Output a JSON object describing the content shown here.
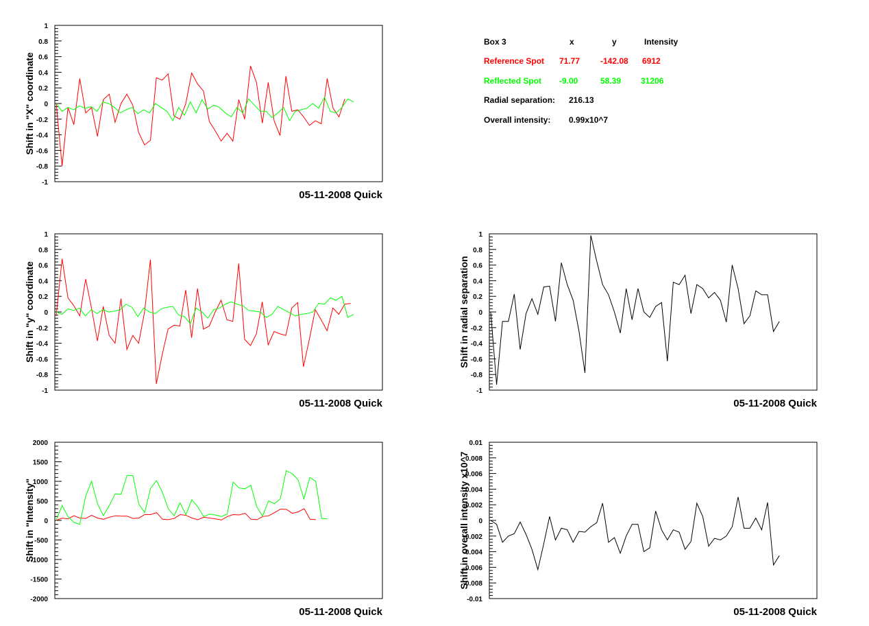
{
  "colors": {
    "reference": "#ff0000",
    "reflected": "#00ff00",
    "single": "#000000",
    "frame": "#000000"
  },
  "info_box": {
    "header": {
      "box": "Box 3",
      "x": "x",
      "y": "y",
      "intensity": "Intensity"
    },
    "reference": {
      "label": "Reference Spot",
      "x": "71.77",
      "y": "-142.08",
      "intensity": "6912"
    },
    "reflected": {
      "label": "Reflected Spot",
      "x": "-9.00",
      "y": "58.39",
      "intensity": "31206"
    },
    "radial": {
      "label": "Radial separation:",
      "value": "216.13"
    },
    "overall": {
      "label": "Overall intensity:",
      "value": "0.99x10^7"
    }
  },
  "chart_data": [
    {
      "id": "x_shift",
      "type": "line",
      "ylabel": "Shift in \"X\" coordinate",
      "footer": "05-11-2008 Quick",
      "ylim": [
        -1,
        1
      ],
      "yticks": [
        "1",
        "0.8",
        "0.6",
        "0.4",
        "0.2",
        "0",
        "-0.2",
        "-0.4",
        "-0.6",
        "-0.8",
        "-1"
      ],
      "ytick_values": [
        1,
        0.8,
        0.6,
        0.4,
        0.2,
        0,
        -0.2,
        -0.4,
        -0.6,
        -0.8,
        -1
      ],
      "series": [
        {
          "color_key": "reference",
          "values": [
            0.0,
            -0.8,
            -0.05,
            -0.27,
            0.32,
            -0.12,
            -0.05,
            -0.42,
            0.05,
            0.12,
            -0.24,
            0.0,
            0.12,
            -0.02,
            -0.37,
            -0.53,
            -0.47,
            0.33,
            0.3,
            0.38,
            -0.16,
            -0.2,
            0.0,
            0.39,
            0.25,
            0.16,
            -0.23,
            -0.35,
            -0.48,
            -0.38,
            -0.48,
            0.05,
            -0.2,
            0.48,
            0.27,
            -0.25,
            0.27,
            -0.22,
            -0.41,
            0.35,
            -0.1,
            -0.08,
            -0.17,
            -0.28,
            -0.22,
            -0.26,
            0.32,
            -0.06,
            -0.17,
            0.06
          ]
        },
        {
          "color_key": "reflected",
          "values": [
            0.0,
            -0.1,
            -0.05,
            -0.08,
            -0.03,
            -0.06,
            -0.04,
            -0.1,
            0.02,
            0.0,
            -0.05,
            -0.12,
            -0.08,
            -0.05,
            -0.13,
            -0.08,
            -0.12,
            0.0,
            -0.05,
            -0.1,
            -0.22,
            -0.05,
            -0.15,
            0.02,
            -0.12,
            0.05,
            -0.07,
            -0.02,
            -0.05,
            -0.12,
            -0.17,
            -0.05,
            -0.12,
            0.06,
            -0.02,
            -0.1,
            -0.1,
            -0.18,
            -0.12,
            -0.05,
            -0.22,
            -0.1,
            -0.08,
            -0.06,
            0.0,
            -0.06,
            0.08,
            -0.1,
            -0.12,
            -0.05,
            0.06,
            0.02
          ]
        }
      ]
    },
    {
      "id": "y_shift",
      "type": "line",
      "ylabel": "Shift in \"y\" coordinate",
      "footer": "05-11-2008 Quick",
      "ylim": [
        -1,
        1
      ],
      "yticks": [
        "1",
        "0.8",
        "0.6",
        "0.4",
        "0.2",
        "0",
        "-0.2",
        "-0.4",
        "-0.6",
        "-0.8",
        "-1"
      ],
      "ytick_values": [
        1,
        0.8,
        0.6,
        0.4,
        0.2,
        0,
        -0.2,
        -0.4,
        -0.6,
        -0.8,
        -1
      ],
      "series": [
        {
          "color_key": "reference",
          "values": [
            -0.05,
            0.68,
            0.18,
            0.08,
            -0.05,
            0.42,
            0.05,
            -0.37,
            0.07,
            -0.3,
            -0.4,
            0.17,
            -0.48,
            -0.3,
            -0.4,
            0.0,
            0.67,
            -0.92,
            -0.55,
            -0.22,
            -0.17,
            -0.18,
            0.28,
            -0.33,
            0.3,
            -0.22,
            -0.18,
            0.0,
            0.15,
            -0.1,
            -0.12,
            0.62,
            -0.35,
            -0.43,
            -0.28,
            0.13,
            -0.42,
            -0.25,
            -0.28,
            -0.3,
            0.05,
            0.12,
            -0.7,
            -0.35,
            0.03,
            -0.1,
            -0.24,
            0.05,
            -0.03,
            0.1,
            0.11
          ]
        },
        {
          "color_key": "reflected",
          "values": [
            0.0,
            -0.03,
            0.04,
            0.02,
            0.05,
            -0.05,
            0.03,
            -0.02,
            0.03,
            0.0,
            0.01,
            0.03,
            0.1,
            0.06,
            -0.06,
            0.05,
            0.0,
            -0.02,
            0.04,
            0.06,
            0.07,
            -0.04,
            -0.06,
            -0.15,
            0.05,
            0.0,
            -0.08,
            0.03,
            0.05,
            0.1,
            0.13,
            0.1,
            0.08,
            0.02,
            0.01,
            0.0,
            -0.07,
            -0.03,
            0.07,
            0.03,
            -0.01,
            -0.05,
            -0.03,
            -0.02,
            0.0,
            0.11,
            0.1,
            0.18,
            0.15,
            0.2,
            -0.07,
            -0.03
          ]
        }
      ]
    },
    {
      "id": "intensity_shift",
      "type": "line",
      "ylabel": "Shift in \"Intensity\"",
      "footer": "05-11-2008 Quick",
      "ylim": [
        -2000,
        2000
      ],
      "yticks": [
        "2000",
        "1500",
        "1000",
        "500",
        "0",
        "-500",
        "-1000",
        "-1500",
        "-2000"
      ],
      "ytick_values": [
        2000,
        1500,
        1000,
        500,
        0,
        -500,
        -1000,
        -1500,
        -2000
      ],
      "series": [
        {
          "color_key": "reference",
          "values": [
            0,
            60,
            40,
            120,
            60,
            50,
            130,
            60,
            30,
            80,
            120,
            110,
            110,
            50,
            60,
            150,
            150,
            200,
            30,
            20,
            50,
            150,
            130,
            60,
            20,
            80,
            60,
            40,
            10,
            100,
            150,
            140,
            180,
            30,
            20,
            100,
            120,
            200,
            290,
            280,
            180,
            220,
            300,
            30,
            20
          ]
        },
        {
          "color_key": "reflected",
          "values": [
            0,
            380,
            100,
            -50,
            -100,
            620,
            1000,
            430,
            120,
            380,
            680,
            670,
            1150,
            1150,
            420,
            200,
            820,
            1020,
            720,
            300,
            120,
            450,
            150,
            530,
            350,
            100,
            160,
            140,
            100,
            160,
            980,
            830,
            810,
            900,
            350,
            110,
            500,
            430,
            550,
            1270,
            1200,
            1040,
            550,
            1100,
            1000,
            50,
            40
          ]
        }
      ]
    },
    {
      "id": "radial_shift",
      "type": "line",
      "ylabel": "Shift in radial separation",
      "footer": "05-11-2008 Quick",
      "ylim": [
        -1,
        1
      ],
      "yticks": [
        "1",
        "0.8",
        "0.6",
        "0.4",
        "0.2",
        "0",
        "-0.2",
        "-0.4",
        "-0.6",
        "-0.8",
        "-1"
      ],
      "ytick_values": [
        1,
        0.8,
        0.6,
        0.4,
        0.2,
        0,
        -0.2,
        -0.4,
        -0.6,
        -0.8,
        -1
      ],
      "series": [
        {
          "color_key": "single",
          "values": [
            0.0,
            -0.93,
            -0.12,
            -0.12,
            0.23,
            -0.48,
            -0.02,
            0.17,
            -0.03,
            0.32,
            0.33,
            -0.12,
            0.63,
            0.35,
            0.15,
            -0.25,
            -0.78,
            0.98,
            0.65,
            0.35,
            0.22,
            0.0,
            -0.27,
            0.3,
            -0.1,
            0.3,
            0.0,
            -0.07,
            0.07,
            0.12,
            -0.63,
            0.38,
            0.35,
            0.47,
            -0.02,
            0.35,
            0.3,
            0.18,
            0.25,
            0.15,
            -0.13,
            0.6,
            0.3,
            -0.15,
            -0.05,
            0.27,
            0.22,
            0.22,
            -0.25,
            -0.12
          ]
        }
      ]
    },
    {
      "id": "overall_intensity_shift",
      "type": "line",
      "ylabel": "Shift in overall intensity x10^7",
      "footer": "05-11-2008 Quick",
      "ylim": [
        -0.01,
        0.01
      ],
      "yticks": [
        "0.01",
        "0.008",
        "0.006",
        "0.004",
        "0.002",
        "0",
        "-0.002",
        "-0.004",
        "-0.006",
        "-0.008",
        "-0.01"
      ],
      "ytick_values": [
        0.01,
        0.008,
        0.006,
        0.004,
        0.002,
        0,
        -0.002,
        -0.004,
        -0.006,
        -0.008,
        -0.01
      ],
      "series": [
        {
          "color_key": "single",
          "values": [
            0.0,
            -0.0005,
            -0.0028,
            -0.002,
            -0.0017,
            -0.0002,
            -0.0018,
            -0.0037,
            -0.0063,
            -0.003,
            0.0005,
            -0.0025,
            -0.001,
            -0.0012,
            -0.0028,
            -0.0014,
            -0.0015,
            -0.0008,
            -0.0003,
            0.0022,
            -0.0028,
            -0.0022,
            -0.0042,
            -0.002,
            -0.0005,
            -0.0005,
            -0.004,
            -0.0035,
            0.0012,
            -0.0012,
            -0.0025,
            -0.0012,
            -0.0015,
            -0.0037,
            -0.0027,
            0.0022,
            0.0005,
            -0.0033,
            -0.0023,
            -0.0025,
            -0.002,
            -0.0008,
            0.003,
            -0.001,
            -0.001,
            0.0003,
            -0.0012,
            0.0023,
            -0.0057,
            -0.0045
          ]
        }
      ]
    }
  ]
}
